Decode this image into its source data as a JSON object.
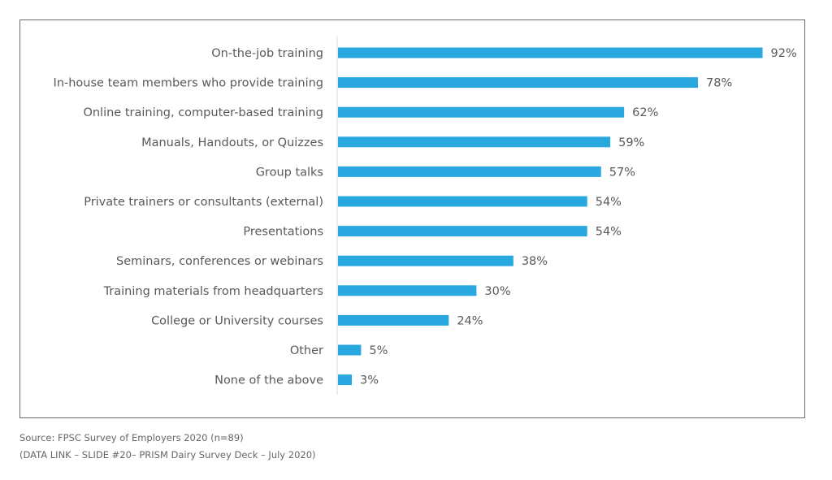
{
  "chart_data": {
    "type": "bar",
    "orientation": "horizontal",
    "title": "",
    "xlabel": "",
    "ylabel": "",
    "xlim": [
      0,
      100
    ],
    "grid": false,
    "legend": "none",
    "bar_color": "#29a8e0",
    "value_suffix": "%",
    "categories": [
      "On-the-job training",
      "In-house team members who provide training",
      "Online training, computer-based training",
      "Manuals, Handouts, or Quizzes",
      "Group talks",
      "Private trainers or consultants (external)",
      "Presentations",
      "Seminars, conferences or webinars",
      "Training materials from headquarters",
      "College or University courses",
      "Other",
      "None of the above"
    ],
    "values": [
      92,
      78,
      62,
      59,
      57,
      54,
      54,
      38,
      30,
      24,
      5,
      3
    ],
    "value_labels": [
      "92%",
      "78%",
      "62%",
      "59%",
      "57%",
      "54%",
      "54%",
      "38%",
      "30%",
      "24%",
      "5%",
      "3%"
    ]
  },
  "footer": {
    "source": "Source: FPSC Survey of Employers 2020 (n=89)",
    "data_link": "(DATA LINK – SLIDE #20– PRISM Dairy Survey Deck – July 2020)"
  }
}
